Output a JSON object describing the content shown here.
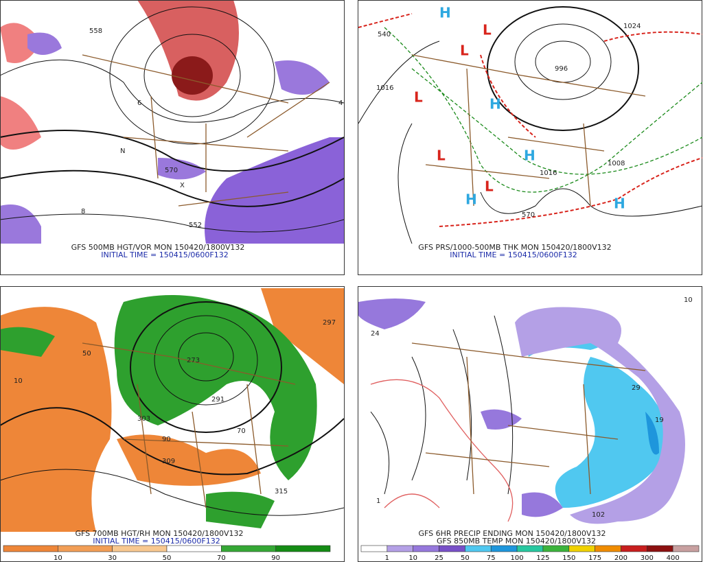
{
  "panels": [
    {
      "caption": "GFS 500MB HGT/VOR MON 150420/1800V132",
      "subcaption": "INITIAL TIME = 150415/0600F132",
      "labels": [
        "558",
        "570",
        "552",
        "6",
        "4",
        "N",
        "X",
        "8"
      ]
    },
    {
      "caption": "GFS PRS/1000-500MB THK MON 150420/1800V132",
      "subcaption": "INITIAL TIME = 150415/0600F132",
      "labels": [
        "H",
        "L",
        "L",
        "L",
        "L",
        "H",
        "H",
        "H",
        "H",
        "L",
        "1016",
        "1024",
        "1008",
        "1016",
        "540",
        "570",
        "996"
      ]
    },
    {
      "caption": "GFS 700MB HGT/RH MON 150420/1800V132",
      "subcaption": "INITIAL TIME = 150415/0600F132",
      "labels": [
        "50",
        "10",
        "90",
        "273",
        "291",
        "303",
        "309",
        "315",
        "297",
        "70"
      ]
    },
    {
      "caption": "GFS 6HR PRECIP ENDING MON 150420/1800V132",
      "subcaption": "GFS 850MB TEMP MON 150420/1800V132",
      "labels": [
        "24",
        "1",
        "19",
        "29",
        "102",
        "10"
      ]
    }
  ],
  "colorbars": [
    {
      "ticks": [
        10,
        30,
        50,
        70,
        90
      ],
      "colors": [
        "#ee8638",
        "#f29e56",
        "#f8c890",
        "#ffffff",
        "#35a835",
        "#148c14"
      ]
    },
    {
      "ticks": [
        1,
        10,
        25,
        50,
        75,
        100,
        125,
        150,
        175,
        200,
        300,
        400
      ],
      "colors": [
        "#ffffff",
        "#b4a0e6",
        "#9678dc",
        "#7850c8",
        "#50c8f0",
        "#1e96dc",
        "#28c8a0",
        "#3cb43c",
        "#f0d200",
        "#f08c00",
        "#c81e1e",
        "#8c1010",
        "#c8a0a0"
      ]
    }
  ]
}
